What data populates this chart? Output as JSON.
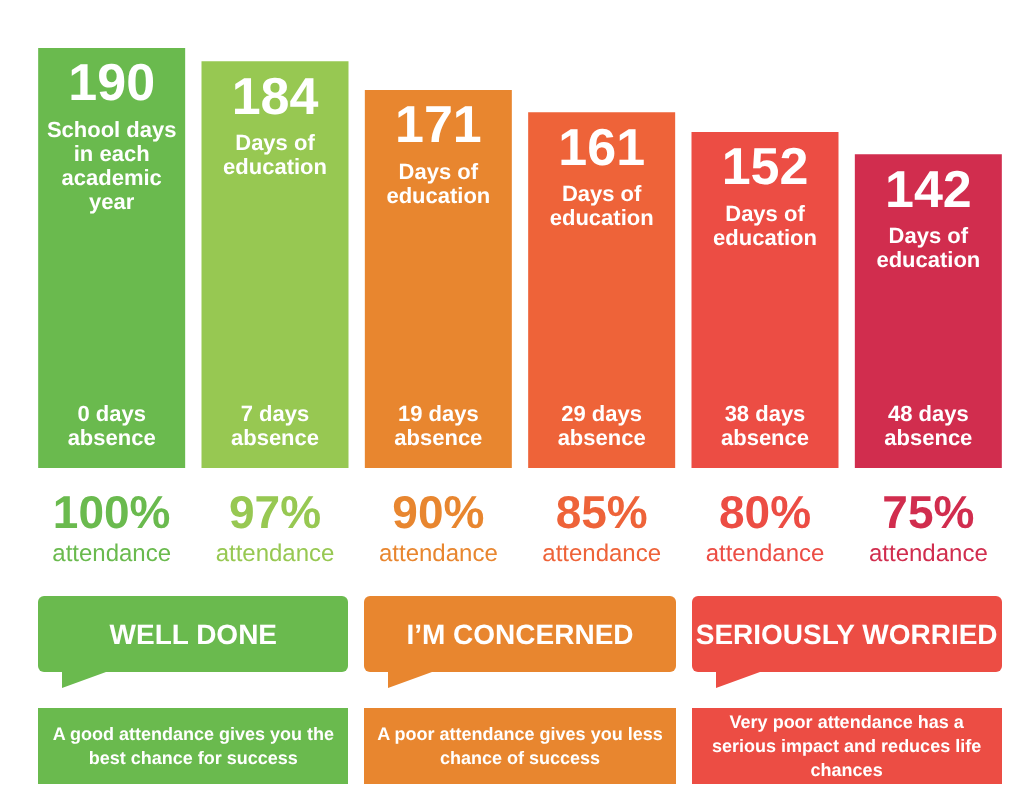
{
  "chart_data": {
    "type": "bar",
    "categories": [
      "100% attendance",
      "97% attendance",
      "90% attendance",
      "85% attendance",
      "80% attendance",
      "75% attendance"
    ],
    "values": [
      190,
      184,
      171,
      161,
      152,
      142
    ],
    "colors": [
      "#6aba4e",
      "#97c852",
      "#e8862f",
      "#ee6339",
      "#ec4d44",
      "#d12d4e"
    ],
    "data_labels": true,
    "annotations": [
      "School days in each academic year",
      "Days of education",
      "Days of education",
      "Days of education",
      "Days of education",
      "Days of education",
      "0 days absence",
      "7 days absence",
      "19 days absence",
      "29 days absence",
      "38 days absence",
      "48 days absence",
      "WELL DONE",
      "A good attendance gives you the best chance for success",
      "I’M CONCERNED",
      "A poor attendance gives you less chance of success",
      "SERIOUSLY WORRIED",
      "Very poor attendance has a serious impact and reduces life chances"
    ]
  }
}
